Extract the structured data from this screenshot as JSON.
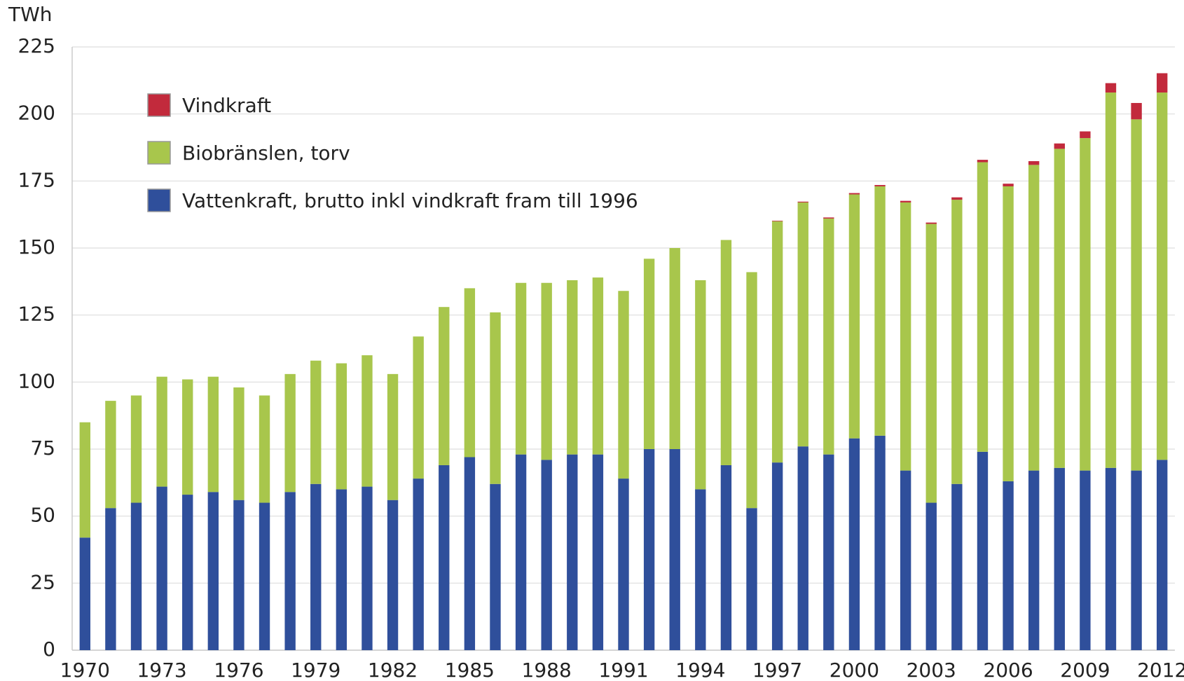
{
  "chart_data": {
    "type": "stacked_bar",
    "y_label": "TWh",
    "categories": [
      "1970",
      null,
      null,
      "1973",
      null,
      null,
      "1976",
      null,
      null,
      "1979",
      null,
      null,
      "1982",
      null,
      null,
      "1985",
      null,
      null,
      "1988",
      null,
      null,
      "1991",
      null,
      null,
      "1994",
      null,
      null,
      "1997",
      null,
      null,
      "2000",
      null,
      null,
      "2003",
      null,
      null,
      "2006",
      null,
      null,
      "2009",
      null,
      null,
      "2012"
    ],
    "series": [
      {
        "name": "Vattenkraft, brutto inkl vindkraft fram till 1996",
        "color": "#2f4f9b",
        "values": [
          42,
          53,
          55,
          61,
          58,
          59,
          56,
          55,
          59,
          62,
          60,
          61,
          56,
          64,
          69,
          72,
          62,
          73,
          71,
          73,
          73,
          64,
          75,
          75,
          60,
          69,
          53,
          70,
          76,
          73,
          79,
          80,
          67,
          55,
          62,
          74,
          63,
          67,
          68,
          67,
          68,
          67,
          71
        ]
      },
      {
        "name": "Biobränslen, torv",
        "color": "#a8c64c",
        "values": [
          43,
          40,
          40,
          41,
          43,
          43,
          42,
          40,
          44,
          46,
          47,
          49,
          47,
          53,
          59,
          63,
          64,
          64,
          66,
          65,
          66,
          70,
          71,
          75,
          78,
          84,
          88,
          90,
          91,
          88,
          91,
          93,
          100,
          104,
          106,
          108,
          110,
          114,
          119,
          124,
          140,
          131,
          137
        ]
      },
      {
        "name": "Vindkraft",
        "color": "#c22a3c",
        "values": [
          null,
          null,
          null,
          null,
          null,
          null,
          null,
          null,
          null,
          null,
          null,
          null,
          null,
          null,
          null,
          null,
          null,
          null,
          null,
          null,
          null,
          null,
          null,
          null,
          null,
          null,
          null,
          0.2,
          0.3,
          0.4,
          0.5,
          0.5,
          0.6,
          0.5,
          0.9,
          0.9,
          1.0,
          1.4,
          2.0,
          2.5,
          3.5,
          6.1,
          7.2
        ]
      }
    ],
    "legend_order": [
      2,
      1,
      0
    ],
    "ylim": [
      0,
      225
    ],
    "yticks": [
      0,
      25,
      50,
      75,
      100,
      125,
      150,
      175,
      200,
      225
    ],
    "grid": true
  }
}
